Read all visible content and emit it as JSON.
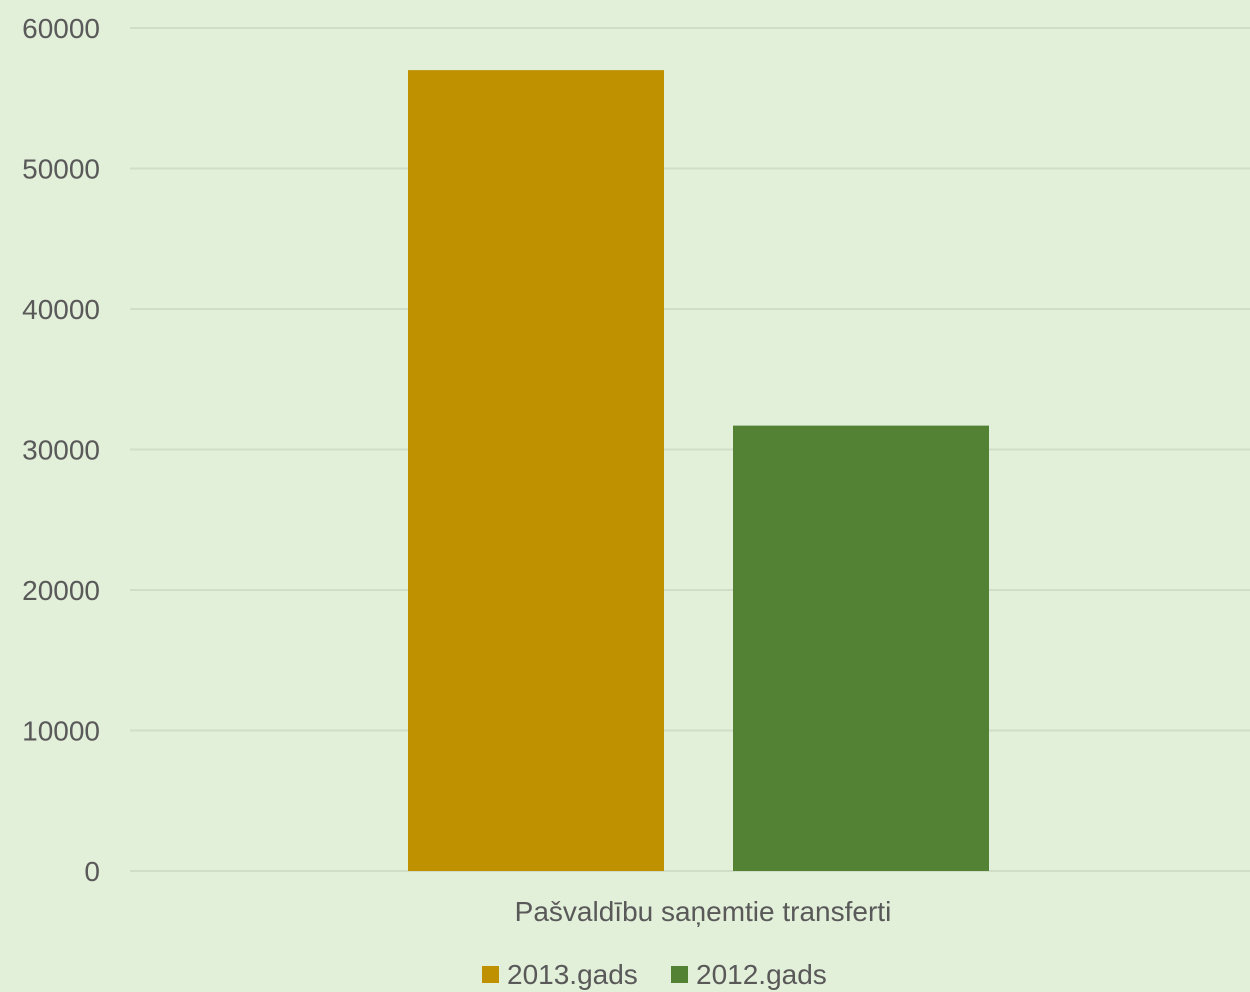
{
  "chart_data": {
    "type": "bar",
    "categories": [
      "Pašvaldību saņemtie transferti"
    ],
    "series": [
      {
        "name": "2013.gads",
        "values": [
          57000
        ],
        "color": "#bf9000"
      },
      {
        "name": "2012.gads",
        "values": [
          31700
        ],
        "color": "#548235"
      }
    ],
    "ylim": [
      0,
      60000
    ],
    "yticks": [
      0,
      10000,
      20000,
      30000,
      40000,
      50000,
      60000
    ],
    "grid": true,
    "legend_position": "bottom",
    "background": "#e2efd9",
    "gridline_color": "#d0ddc8"
  }
}
